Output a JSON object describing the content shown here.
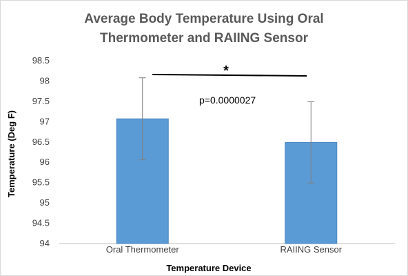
{
  "chart_data": {
    "type": "bar",
    "title_lines": [
      "Average Body Temperature Using Oral",
      "Thermometer and RAIING Sensor"
    ],
    "xlabel": "Temperature Device",
    "ylabel": "Temperature (Deg F)",
    "categories": [
      "Oral Thermometer",
      "RAIING Sensor"
    ],
    "values": [
      97.07,
      96.49
    ],
    "error_bars": [
      1.01,
      1.0
    ],
    "ylim": [
      94,
      98.5
    ],
    "ytick_step": 0.5,
    "ytick_labels": [
      "94",
      "94.5",
      "95",
      "95.5",
      "96",
      "96.5",
      "97",
      "97.5",
      "98",
      "98.5"
    ],
    "grid": false,
    "legend": "none",
    "bar_color": "#5b9bd5",
    "bar_edge_color": "#4a86c0",
    "error_bar_color": "#7f7f7f",
    "annotations": {
      "significance": "*",
      "p_value": "p=0.0000027"
    }
  }
}
